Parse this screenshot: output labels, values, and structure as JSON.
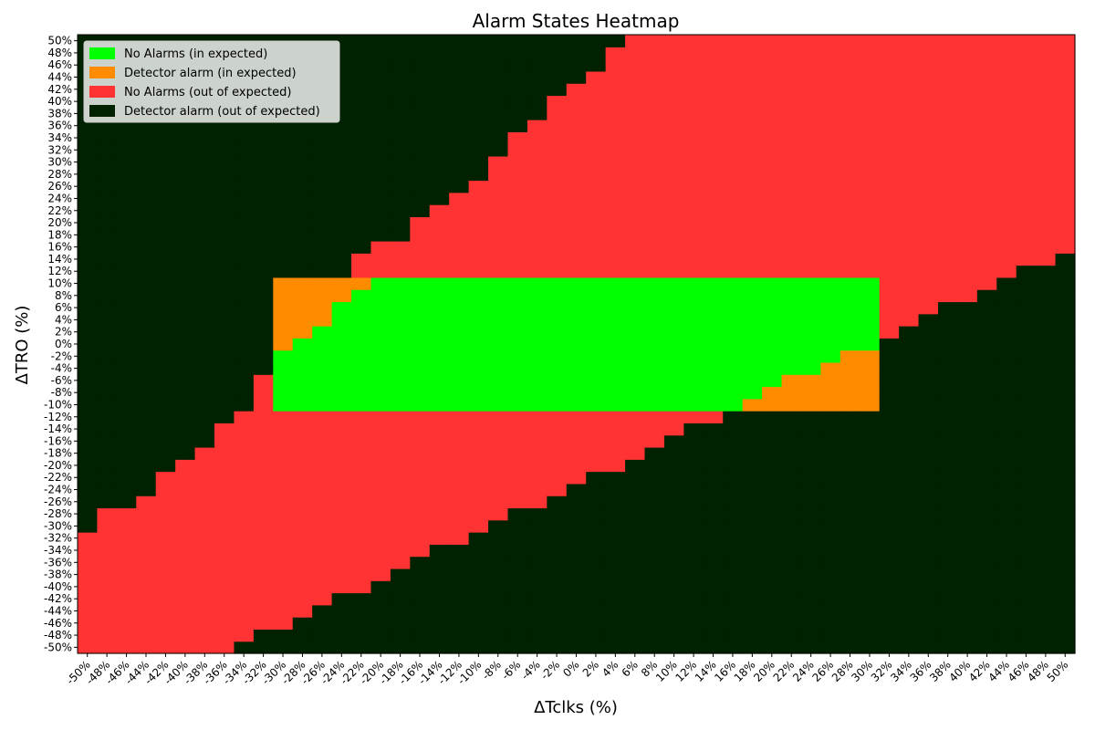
{
  "chart_data": {
    "type": "heatmap",
    "title": "Alarm States Heatmap",
    "xlabel": "ΔTclks (%)",
    "ylabel": "ΔTRO (%)",
    "x_values": [
      -50,
      -48,
      -46,
      -44,
      -42,
      -40,
      -38,
      -36,
      -34,
      -32,
      -30,
      -28,
      -26,
      -24,
      -22,
      -20,
      -18,
      -16,
      -14,
      -12,
      -10,
      -8,
      -6,
      -4,
      -2,
      0,
      2,
      4,
      6,
      8,
      10,
      12,
      14,
      16,
      18,
      20,
      22,
      24,
      26,
      28,
      30,
      32,
      34,
      36,
      38,
      40,
      42,
      44,
      46,
      48,
      50
    ],
    "y_values": [
      -50,
      -48,
      -46,
      -44,
      -42,
      -40,
      -38,
      -36,
      -34,
      -32,
      -30,
      -28,
      -26,
      -24,
      -22,
      -20,
      -18,
      -16,
      -14,
      -12,
      -10,
      -8,
      -6,
      -4,
      -2,
      0,
      2,
      4,
      6,
      8,
      10,
      12,
      14,
      16,
      18,
      20,
      22,
      24,
      26,
      28,
      30,
      32,
      34,
      36,
      38,
      40,
      42,
      44,
      46,
      48,
      50
    ],
    "x_tick_labels": [
      "-50%",
      "-48%",
      "-46%",
      "-44%",
      "-42%",
      "-40%",
      "-38%",
      "-36%",
      "-34%",
      "-32%",
      "-30%",
      "-28%",
      "-26%",
      "-24%",
      "-22%",
      "-20%",
      "-18%",
      "-16%",
      "-14%",
      "-12%",
      "-10%",
      "-8%",
      "-6%",
      "-4%",
      "-2%",
      "0%",
      "2%",
      "4%",
      "6%",
      "8%",
      "10%",
      "12%",
      "14%",
      "16%",
      "18%",
      "20%",
      "22%",
      "24%",
      "26%",
      "28%",
      "30%",
      "32%",
      "34%",
      "36%",
      "38%",
      "40%",
      "42%",
      "44%",
      "46%",
      "48%",
      "50%"
    ],
    "y_tick_labels": [
      "-50%",
      "-48%",
      "-46%",
      "-44%",
      "-42%",
      "-40%",
      "-38%",
      "-36%",
      "-34%",
      "-32%",
      "-30%",
      "-28%",
      "-26%",
      "-24%",
      "-22%",
      "-20%",
      "-18%",
      "-16%",
      "-14%",
      "-12%",
      "-10%",
      "-8%",
      "-6%",
      "-4%",
      "-2%",
      "0%",
      "2%",
      "4%",
      "6%",
      "8%",
      "10%",
      "12%",
      "14%",
      "16%",
      "18%",
      "20%",
      "22%",
      "24%",
      "26%",
      "28%",
      "30%",
      "32%",
      "34%",
      "36%",
      "38%",
      "40%",
      "42%",
      "44%",
      "46%",
      "48%",
      "50%"
    ],
    "states": [
      {
        "code": 0,
        "name": "No Alarms (in expected)",
        "color": "#00ff00"
      },
      {
        "code": 1,
        "name": "Detector alarm (in expected)",
        "color": "#ff8c00"
      },
      {
        "code": 2,
        "name": "No Alarms (out of expected)",
        "color": "#ff3333"
      },
      {
        "code": 3,
        "name": "Detector alarm (out of expected)",
        "color": "#002200"
      }
    ],
    "regions": {
      "red_band_lower_boundary_y_by_x": [
        -30,
        -26,
        -26,
        -24,
        -20,
        -18,
        -16,
        -12,
        -10,
        -4,
        -4,
        -4,
        -4,
        -4,
        -4,
        -4,
        -4,
        -4,
        -4,
        -4,
        -4,
        -4,
        -4,
        -4,
        -4,
        -4,
        -4,
        -4,
        -4,
        -4,
        -4,
        -4,
        -4,
        -4,
        -4,
        -4,
        -4,
        -4,
        -4,
        -4,
        -4,
        -4,
        -4,
        -4,
        -4,
        -4,
        -4,
        -4,
        -4,
        -4,
        -4
      ],
      "red_band_upper_boundary_y_by_x": [
        -30,
        -30,
        -30,
        -30,
        -30,
        -30,
        -30,
        -30,
        -30,
        -30,
        -30,
        -30,
        -30,
        -30,
        14,
        16,
        16,
        20,
        22,
        24,
        26,
        30,
        34,
        36,
        40,
        42,
        44,
        48,
        50,
        50,
        50,
        50,
        50,
        50,
        50,
        50,
        50,
        50,
        50,
        50,
        50,
        50,
        50,
        50,
        50,
        50,
        50,
        50,
        50,
        50,
        50
      ],
      "lower_dark_band_upper_boundary_y_by_x": [
        -52,
        -52,
        -52,
        -52,
        -52,
        -52,
        -52,
        -52,
        -50,
        -48,
        -48,
        -46,
        -44,
        -42,
        -42,
        -40,
        -38,
        -36,
        -34,
        -34,
        -32,
        -30,
        -28,
        -28,
        -26,
        -24,
        -22,
        -22,
        -20,
        -18,
        -16,
        -14,
        -14,
        -12,
        -12,
        -12,
        -12,
        -12,
        -12,
        -12,
        -12,
        0,
        2,
        4,
        6,
        6,
        8,
        10,
        12,
        12,
        14
      ],
      "in_expected_x_range": [
        -30,
        30
      ],
      "in_expected_y_range": [
        -10,
        10
      ],
      "orange_upper_left_boundary_y_by_x": [
        0,
        2,
        4,
        8,
        10
      ],
      "orange_lower_right_boundary_y_by_x": [
        -10,
        -8,
        -6,
        -6,
        -4,
        -2,
        -2
      ]
    }
  }
}
